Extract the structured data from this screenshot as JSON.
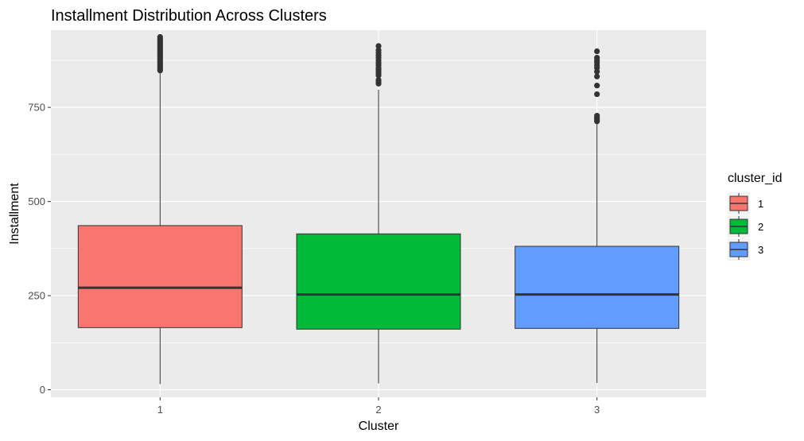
{
  "chart_data": {
    "type": "boxplot",
    "title": "Installment Distribution Across Clusters",
    "xlabel": "Cluster",
    "ylabel": "Installment",
    "ylim": [
      -20,
      955
    ],
    "y_ticks": [
      0,
      250,
      500,
      750
    ],
    "categories": [
      "1",
      "2",
      "3"
    ],
    "grid": true,
    "legend": {
      "title": "cluster_id",
      "placement": "right",
      "entries": [
        "1",
        "2",
        "3"
      ]
    },
    "series": [
      {
        "category": "1",
        "color": "#F8766D",
        "min": 15,
        "q1": 165,
        "median": 271,
        "q3": 436,
        "whisker_high": 842,
        "outliers": [
          848,
          852,
          856,
          860,
          864,
          868,
          872,
          876,
          880,
          884,
          888,
          892,
          896,
          900,
          904,
          908,
          912,
          916,
          920,
          924,
          928,
          932,
          937
        ]
      },
      {
        "category": "2",
        "color": "#00BA38",
        "min": 17,
        "q1": 161,
        "median": 253,
        "q3": 414,
        "whisker_high": 797,
        "outliers": [
          813,
          818,
          823,
          835,
          840,
          845,
          850,
          855,
          862,
          868,
          875,
          882,
          888,
          895,
          902,
          913
        ]
      },
      {
        "category": "3",
        "color": "#619CFF",
        "min": 18,
        "q1": 163,
        "median": 253,
        "q3": 381,
        "whisker_high": 706,
        "outliers": [
          713,
          718,
          723,
          728,
          785,
          808,
          832,
          845,
          855,
          862,
          869,
          875,
          882,
          899
        ]
      }
    ]
  }
}
